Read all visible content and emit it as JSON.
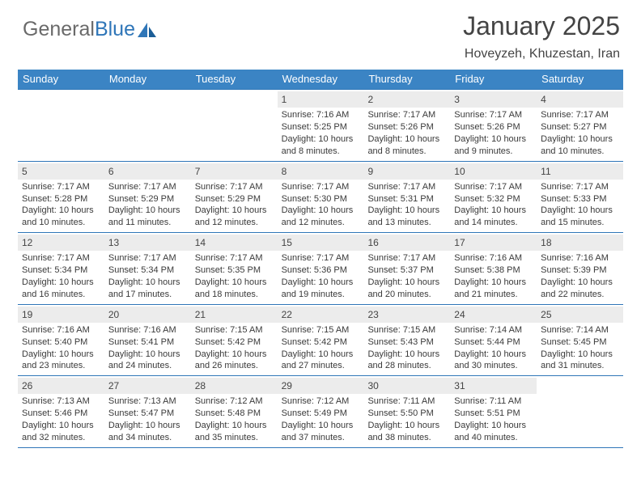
{
  "logo": {
    "text1": "General",
    "text2": "Blue"
  },
  "title": "January 2025",
  "subtitle": "Hoveyzeh, Khuzestan, Iran",
  "colors": {
    "header_bg": "#3b84c4",
    "header_text": "#ffffff",
    "border": "#2f76b8",
    "daynum_bg": "#ececec",
    "logo_gray": "#6a6a6a",
    "logo_blue": "#2f76b8"
  },
  "daysOfWeek": [
    "Sunday",
    "Monday",
    "Tuesday",
    "Wednesday",
    "Thursday",
    "Friday",
    "Saturday"
  ],
  "weeks": [
    [
      {
        "n": "",
        "empty": true
      },
      {
        "n": "",
        "empty": true
      },
      {
        "n": "",
        "empty": true
      },
      {
        "n": "1",
        "sr": "7:16 AM",
        "ss": "5:25 PM",
        "dl": "10 hours and 8 minutes."
      },
      {
        "n": "2",
        "sr": "7:17 AM",
        "ss": "5:26 PM",
        "dl": "10 hours and 8 minutes."
      },
      {
        "n": "3",
        "sr": "7:17 AM",
        "ss": "5:26 PM",
        "dl": "10 hours and 9 minutes."
      },
      {
        "n": "4",
        "sr": "7:17 AM",
        "ss": "5:27 PM",
        "dl": "10 hours and 10 minutes."
      }
    ],
    [
      {
        "n": "5",
        "sr": "7:17 AM",
        "ss": "5:28 PM",
        "dl": "10 hours and 10 minutes."
      },
      {
        "n": "6",
        "sr": "7:17 AM",
        "ss": "5:29 PM",
        "dl": "10 hours and 11 minutes."
      },
      {
        "n": "7",
        "sr": "7:17 AM",
        "ss": "5:29 PM",
        "dl": "10 hours and 12 minutes."
      },
      {
        "n": "8",
        "sr": "7:17 AM",
        "ss": "5:30 PM",
        "dl": "10 hours and 12 minutes."
      },
      {
        "n": "9",
        "sr": "7:17 AM",
        "ss": "5:31 PM",
        "dl": "10 hours and 13 minutes."
      },
      {
        "n": "10",
        "sr": "7:17 AM",
        "ss": "5:32 PM",
        "dl": "10 hours and 14 minutes."
      },
      {
        "n": "11",
        "sr": "7:17 AM",
        "ss": "5:33 PM",
        "dl": "10 hours and 15 minutes."
      }
    ],
    [
      {
        "n": "12",
        "sr": "7:17 AM",
        "ss": "5:34 PM",
        "dl": "10 hours and 16 minutes."
      },
      {
        "n": "13",
        "sr": "7:17 AM",
        "ss": "5:34 PM",
        "dl": "10 hours and 17 minutes."
      },
      {
        "n": "14",
        "sr": "7:17 AM",
        "ss": "5:35 PM",
        "dl": "10 hours and 18 minutes."
      },
      {
        "n": "15",
        "sr": "7:17 AM",
        "ss": "5:36 PM",
        "dl": "10 hours and 19 minutes."
      },
      {
        "n": "16",
        "sr": "7:17 AM",
        "ss": "5:37 PM",
        "dl": "10 hours and 20 minutes."
      },
      {
        "n": "17",
        "sr": "7:16 AM",
        "ss": "5:38 PM",
        "dl": "10 hours and 21 minutes."
      },
      {
        "n": "18",
        "sr": "7:16 AM",
        "ss": "5:39 PM",
        "dl": "10 hours and 22 minutes."
      }
    ],
    [
      {
        "n": "19",
        "sr": "7:16 AM",
        "ss": "5:40 PM",
        "dl": "10 hours and 23 minutes."
      },
      {
        "n": "20",
        "sr": "7:16 AM",
        "ss": "5:41 PM",
        "dl": "10 hours and 24 minutes."
      },
      {
        "n": "21",
        "sr": "7:15 AM",
        "ss": "5:42 PM",
        "dl": "10 hours and 26 minutes."
      },
      {
        "n": "22",
        "sr": "7:15 AM",
        "ss": "5:42 PM",
        "dl": "10 hours and 27 minutes."
      },
      {
        "n": "23",
        "sr": "7:15 AM",
        "ss": "5:43 PM",
        "dl": "10 hours and 28 minutes."
      },
      {
        "n": "24",
        "sr": "7:14 AM",
        "ss": "5:44 PM",
        "dl": "10 hours and 30 minutes."
      },
      {
        "n": "25",
        "sr": "7:14 AM",
        "ss": "5:45 PM",
        "dl": "10 hours and 31 minutes."
      }
    ],
    [
      {
        "n": "26",
        "sr": "7:13 AM",
        "ss": "5:46 PM",
        "dl": "10 hours and 32 minutes."
      },
      {
        "n": "27",
        "sr": "7:13 AM",
        "ss": "5:47 PM",
        "dl": "10 hours and 34 minutes."
      },
      {
        "n": "28",
        "sr": "7:12 AM",
        "ss": "5:48 PM",
        "dl": "10 hours and 35 minutes."
      },
      {
        "n": "29",
        "sr": "7:12 AM",
        "ss": "5:49 PM",
        "dl": "10 hours and 37 minutes."
      },
      {
        "n": "30",
        "sr": "7:11 AM",
        "ss": "5:50 PM",
        "dl": "10 hours and 38 minutes."
      },
      {
        "n": "31",
        "sr": "7:11 AM",
        "ss": "5:51 PM",
        "dl": "10 hours and 40 minutes."
      },
      {
        "n": "",
        "empty": true
      }
    ]
  ],
  "labels": {
    "sunrise": "Sunrise: ",
    "sunset": "Sunset: ",
    "daylight": "Daylight: "
  }
}
